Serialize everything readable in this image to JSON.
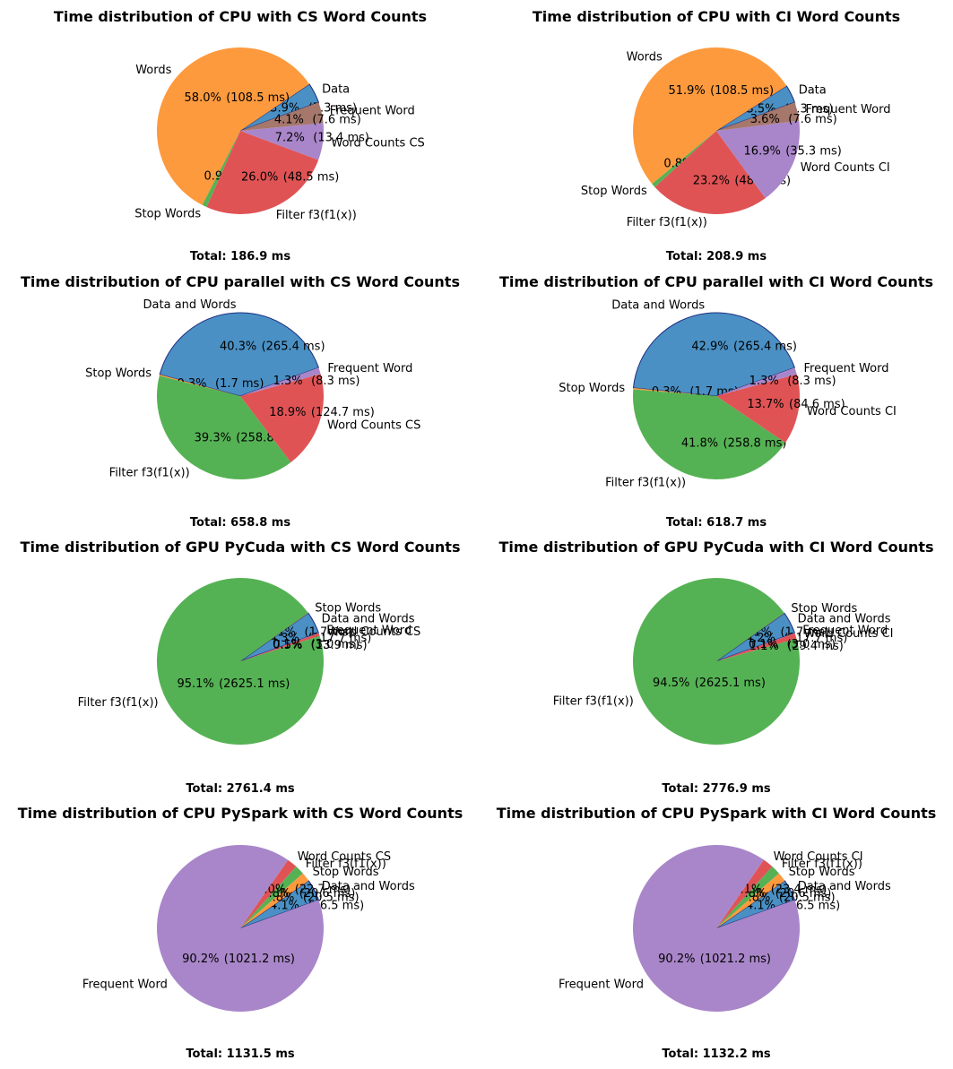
{
  "colors": {
    "blue": "#4a90c4",
    "orange": "#fd9a3e",
    "green": "#55b254",
    "red": "#e05355",
    "purple": "#a986c9",
    "brown": "#a6776b",
    "edge": "#1f2f80"
  },
  "chart_data": [
    {
      "type": "pie",
      "title": "Time distribution of CPU with CS Word Counts",
      "total": "Total: 186.9 ms",
      "start_angle_deg": 20,
      "slices": [
        {
          "label": "Data",
          "value": 7.3,
          "pct": "3.9%",
          "ms": "(7.3 ms)",
          "color": "#4a90c4",
          "edge": true
        },
        {
          "label": "Words",
          "value": 108.5,
          "pct": "58.0%",
          "ms": "(108.5 ms)",
          "color": "#fd9a3e",
          "edge": false
        },
        {
          "label": "Stop Words",
          "value": 1.7,
          "pct": "0.9%",
          "ms": "(1.7 ms)",
          "color": "#55b254",
          "edge": false
        },
        {
          "label": "Filter f3(f1(x))",
          "value": 48.5,
          "pct": "26.0%",
          "ms": "(48.5 ms)",
          "color": "#e05355",
          "edge": false
        },
        {
          "label": "Word Counts CS",
          "value": 13.4,
          "pct": "7.2%",
          "ms": "(13.4 ms)",
          "color": "#a986c9",
          "edge": false
        },
        {
          "label": "Frequent Word",
          "value": 7.6,
          "pct": "4.1%",
          "ms": "(7.6 ms)",
          "color": "#a6776b",
          "edge": false
        }
      ]
    },
    {
      "type": "pie",
      "title": "Time distribution of CPU with CI Word Counts",
      "total": "Total: 208.9 ms",
      "start_angle_deg": 20,
      "slices": [
        {
          "label": "Data",
          "value": 7.3,
          "pct": "3.5%",
          "ms": "(7.3 ms)",
          "color": "#4a90c4",
          "edge": true
        },
        {
          "label": "Words",
          "value": 108.5,
          "pct": "51.9%",
          "ms": "(108.5 ms)",
          "color": "#fd9a3e",
          "edge": false
        },
        {
          "label": "Stop Words",
          "value": 1.7,
          "pct": "0.8%",
          "ms": "(1.7 ms)",
          "color": "#55b254",
          "edge": false
        },
        {
          "label": "Filter f3(f1(x))",
          "value": 48.5,
          "pct": "23.2%",
          "ms": "(48.5 ms)",
          "color": "#e05355",
          "edge": false
        },
        {
          "label": "Word Counts CI",
          "value": 35.3,
          "pct": "16.9%",
          "ms": "(35.3 ms)",
          "color": "#a986c9",
          "edge": false
        },
        {
          "label": "Frequent Word",
          "value": 7.6,
          "pct": "3.6%",
          "ms": "(7.6 ms)",
          "color": "#a6776b",
          "edge": false
        }
      ]
    },
    {
      "type": "pie",
      "title": "Time distribution of CPU parallel with CS Word Counts",
      "total": "Total: 658.8 ms",
      "start_angle_deg": 20,
      "slices": [
        {
          "label": "Data and Words",
          "value": 265.4,
          "pct": "40.3%",
          "ms": "(265.4 ms)",
          "color": "#4a90c4",
          "edge": true
        },
        {
          "label": "Stop Words",
          "value": 1.7,
          "pct": "0.3%",
          "ms": "(1.7 ms)",
          "color": "#fd9a3e",
          "edge": false
        },
        {
          "label": "Filter f3(f1(x))",
          "value": 258.8,
          "pct": "39.3%",
          "ms": "(258.8 ms)",
          "color": "#55b254",
          "edge": false
        },
        {
          "label": "Word Counts CS",
          "value": 124.7,
          "pct": "18.9%",
          "ms": "(124.7 ms)",
          "color": "#e05355",
          "edge": false
        },
        {
          "label": "Frequent Word",
          "value": 8.3,
          "pct": "1.3%",
          "ms": "(8.3 ms)",
          "color": "#a986c9",
          "edge": false
        }
      ]
    },
    {
      "type": "pie",
      "title": "Time distribution of CPU parallel with CI Word Counts",
      "total": "Total: 618.7 ms",
      "start_angle_deg": 20,
      "slices": [
        {
          "label": "Data and Words",
          "value": 265.4,
          "pct": "42.9%",
          "ms": "(265.4 ms)",
          "color": "#4a90c4",
          "edge": true
        },
        {
          "label": "Stop Words",
          "value": 1.7,
          "pct": "0.3%",
          "ms": "(1.7 ms)",
          "color": "#fd9a3e",
          "edge": false
        },
        {
          "label": "Filter f3(f1(x))",
          "value": 258.8,
          "pct": "41.8%",
          "ms": "(258.8 ms)",
          "color": "#55b254",
          "edge": false
        },
        {
          "label": "Word Counts CI",
          "value": 84.6,
          "pct": "13.7%",
          "ms": "(84.6 ms)",
          "color": "#e05355",
          "edge": false
        },
        {
          "label": "Frequent Word",
          "value": 8.3,
          "pct": "1.3%",
          "ms": "(8.3 ms)",
          "color": "#a986c9",
          "edge": false
        }
      ]
    },
    {
      "type": "pie",
      "title": "Time distribution of GPU PyCuda with CS Word Counts",
      "total": "Total: 2761.4 ms",
      "start_angle_deg": 20,
      "slices": [
        {
          "label": "Data and Words",
          "value": 117.7,
          "pct": "4.3%",
          "ms": "(117.7 ms)",
          "color": "#4a90c4",
          "edge": true
        },
        {
          "label": "Stop Words",
          "value": 1.7,
          "pct": "0.1%",
          "ms": "(1.7 ms)",
          "color": "#fd9a3e",
          "edge": false
        },
        {
          "label": "Filter f3(f1(x))",
          "value": 2625.1,
          "pct": "95.1%",
          "ms": "(2625.1 ms)",
          "color": "#55b254",
          "edge": false
        },
        {
          "label": "Word Counts CS",
          "value": 13.9,
          "pct": "0.5%",
          "ms": "(13.9 ms)",
          "color": "#e05355",
          "edge": false
        },
        {
          "label": "Frequent Word",
          "value": 3.0,
          "pct": "0.1%",
          "ms": "(3.0 ms)",
          "color": "#a986c9",
          "edge": false
        }
      ]
    },
    {
      "type": "pie",
      "title": "Time distribution of GPU PyCuda with CI Word Counts",
      "total": "Total: 2776.9 ms",
      "start_angle_deg": 20,
      "slices": [
        {
          "label": "Data and Words",
          "value": 117.7,
          "pct": "4.2%",
          "ms": "(117.7 ms)",
          "color": "#4a90c4",
          "edge": true
        },
        {
          "label": "Stop Words",
          "value": 1.7,
          "pct": "0.1%",
          "ms": "(1.7 ms)",
          "color": "#fd9a3e",
          "edge": false
        },
        {
          "label": "Filter f3(f1(x))",
          "value": 2625.1,
          "pct": "94.5%",
          "ms": "(2625.1 ms)",
          "color": "#55b254",
          "edge": false
        },
        {
          "label": "Word Counts CI",
          "value": 29.4,
          "pct": "1.1%",
          "ms": "(29.4 ms)",
          "color": "#e05355",
          "edge": false
        },
        {
          "label": "Frequent Word",
          "value": 3.0,
          "pct": "0.1%",
          "ms": "(3.0 ms)",
          "color": "#a986c9",
          "edge": false
        }
      ]
    },
    {
      "type": "pie",
      "title": "Time distribution of CPU PySpark with CS Word Counts",
      "total": "Total: 1131.5 ms",
      "start_angle_deg": 20,
      "slices": [
        {
          "label": "Data and Words",
          "value": 46.5,
          "pct": "4.1%",
          "ms": "(46.5 ms)",
          "color": "#4a90c4",
          "edge": true
        },
        {
          "label": "Stop Words",
          "value": 20.5,
          "pct": "1.8%",
          "ms": "(20.5 ms)",
          "color": "#fd9a3e",
          "edge": false
        },
        {
          "label": "Filter f3(f1(x))",
          "value": 20.6,
          "pct": "1.8%",
          "ms": "(20.6 ms)",
          "color": "#55b254",
          "edge": false
        },
        {
          "label": "Word Counts CS",
          "value": 22.7,
          "pct": "2.0%",
          "ms": "(22.7 ms)",
          "color": "#e05355",
          "edge": false
        },
        {
          "label": "Frequent Word",
          "value": 1021.2,
          "pct": "90.2%",
          "ms": "(1021.2 ms)",
          "color": "#a986c9",
          "edge": false
        }
      ]
    },
    {
      "type": "pie",
      "title": "Time distribution of CPU PySpark with CI Word Counts",
      "total": "Total: 1132.2 ms",
      "start_angle_deg": 20,
      "slices": [
        {
          "label": "Data and Words",
          "value": 46.5,
          "pct": "4.1%",
          "ms": "(46.5 ms)",
          "color": "#4a90c4",
          "edge": true
        },
        {
          "label": "Stop Words",
          "value": 20.5,
          "pct": "1.8%",
          "ms": "(20.5 ms)",
          "color": "#fd9a3e",
          "edge": false
        },
        {
          "label": "Filter f3(f1(x))",
          "value": 20.6,
          "pct": "1.8%",
          "ms": "(20.6 ms)",
          "color": "#55b254",
          "edge": false
        },
        {
          "label": "Word Counts CI",
          "value": 23.4,
          "pct": "2.1%",
          "ms": "(23.4 ms)",
          "color": "#e05355",
          "edge": false
        },
        {
          "label": "Frequent Word",
          "value": 1021.2,
          "pct": "90.2%",
          "ms": "(1021.2 ms)",
          "color": "#a986c9",
          "edge": false
        }
      ]
    }
  ]
}
